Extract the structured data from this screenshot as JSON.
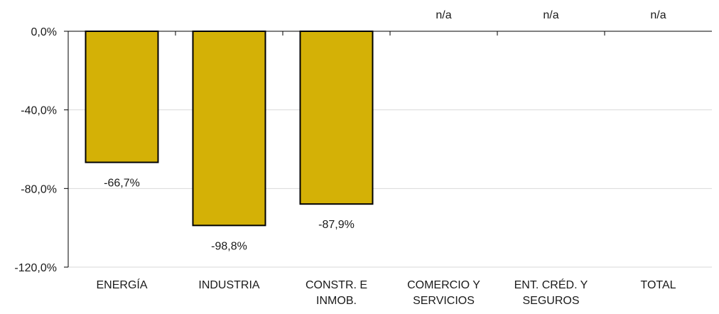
{
  "chart_data": {
    "type": "bar",
    "title": "",
    "xlabel": "",
    "ylabel": "",
    "categories": [
      [
        "ENERGÍA"
      ],
      [
        "INDUSTRIA"
      ],
      [
        "CONSTR. E",
        "INMOB."
      ],
      [
        "COMERCIO Y",
        "SERVICIOS"
      ],
      [
        "ENT. CRÉD. Y",
        "SEGUROS"
      ],
      [
        "TOTAL"
      ]
    ],
    "values": [
      -66.7,
      -98.8,
      -87.9,
      null,
      null,
      null
    ],
    "labels": [
      "-66,7%",
      "-98,8%",
      "-87,9%",
      "n/a",
      "n/a",
      "n/a"
    ],
    "ylim": [
      -120,
      0
    ],
    "yticks": [
      0,
      -40,
      -80,
      -120
    ],
    "ytick_labels": [
      "0,0%",
      "-40,0%",
      "-80,0%",
      "-120,0%"
    ],
    "grid": true,
    "legend": "none",
    "colors": {
      "bar_fill": "#D4B106",
      "bar_stroke": "#000000",
      "gridline": "#D9D9D9",
      "axis": "#000000",
      "text": "#1A1A1A"
    }
  }
}
